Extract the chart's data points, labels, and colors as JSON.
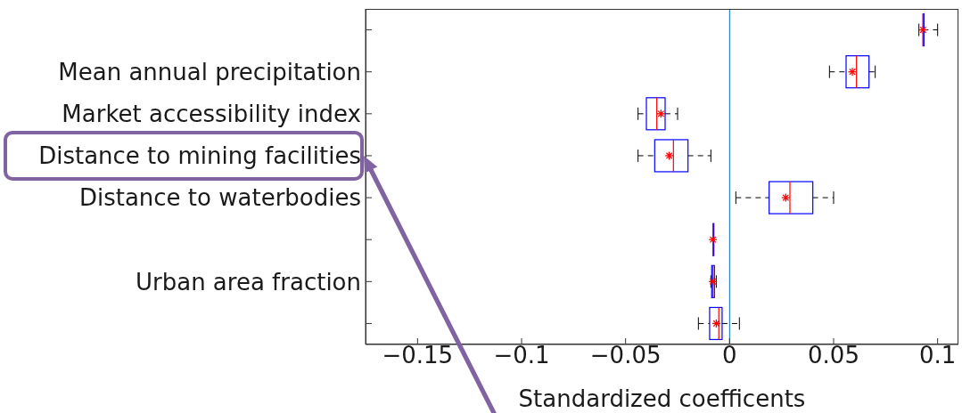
{
  "chart_data": {
    "type": "box",
    "orientation": "horizontal",
    "xlabel": "Standardized coefficents",
    "categories": [
      null,
      "Mean annual precipitation",
      "Market accessibility index",
      "Distance to mining facilities",
      "Distance to waterbodies",
      null,
      "Urban area fraction",
      null
    ],
    "series": [
      {
        "color": "#0000ff",
        "boxes": [
          {
            "low": 0.091,
            "q1": 0.093,
            "median": 0.093,
            "q3": 0.093,
            "high": 0.1,
            "mean": 0.093
          },
          {
            "low": 0.048,
            "q1": 0.056,
            "median": 0.061,
            "q3": 0.067,
            "high": 0.07,
            "mean": 0.059
          },
          {
            "low": -0.044,
            "q1": -0.04,
            "median": -0.035,
            "q3": -0.031,
            "high": -0.025,
            "mean": -0.033
          },
          {
            "low": -0.044,
            "q1": -0.036,
            "median": -0.027,
            "q3": -0.02,
            "high": -0.009,
            "mean": -0.029
          },
          {
            "low": 0.003,
            "q1": 0.019,
            "median": 0.029,
            "q3": 0.04,
            "high": 0.05,
            "mean": 0.027
          },
          {
            "low": -0.008,
            "q1": -0.008,
            "median": -0.008,
            "q3": -0.008,
            "high": -0.008,
            "mean": -0.008
          },
          {
            "low": -0.009,
            "q1": -0.0086,
            "median": -0.008,
            "q3": -0.0073,
            "high": -0.0064,
            "mean": -0.008
          },
          {
            "low": -0.015,
            "q1": -0.0096,
            "median": -0.0052,
            "q3": -0.0036,
            "high": 0.0047,
            "mean": -0.0064
          }
        ]
      }
    ],
    "xlim": [
      -0.175,
      0.11
    ],
    "xticks": [
      {
        "value": -0.15,
        "label": "−0.15"
      },
      {
        "value": -0.1,
        "label": "−0.1"
      },
      {
        "value": -0.05,
        "label": "−0.05"
      },
      0,
      0.05,
      0.1
    ],
    "ref_lines": [
      {
        "axis": "x",
        "value": 0,
        "color": "#0072bd"
      }
    ],
    "grid": false
  }
}
